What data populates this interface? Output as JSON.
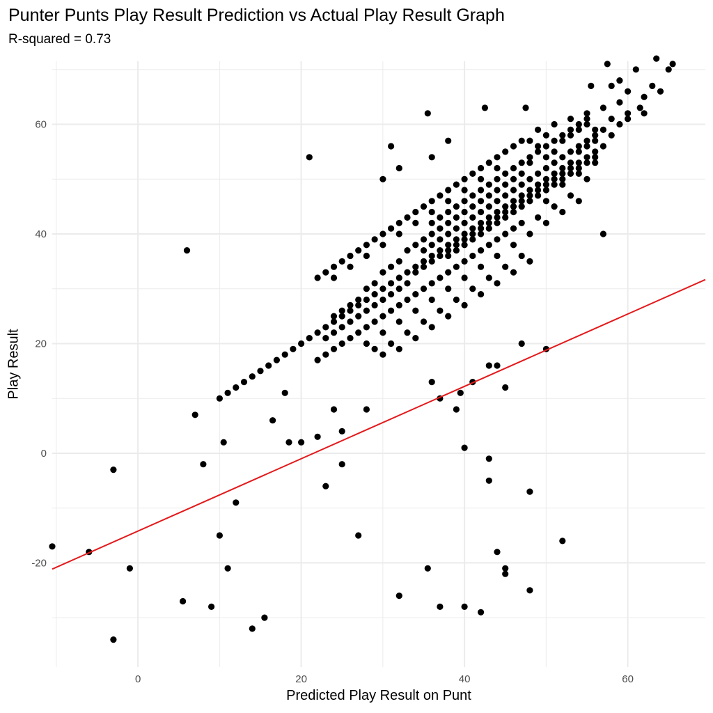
{
  "chart_data": {
    "type": "scatter",
    "title": "Punter Punts Play Result Prediction vs Actual Play Result Graph",
    "subtitle": "R-squared = 0.73",
    "xlabel": "Predicted Play Result on Punt",
    "ylabel": "Play Result",
    "xlim": [
      -10.5,
      69.5
    ],
    "ylim": [
      -39,
      71.5
    ],
    "x_ticks": [
      0,
      20,
      40,
      60
    ],
    "y_ticks": [
      -20,
      0,
      20,
      40,
      60
    ],
    "x_tick_labels": [
      "0",
      "20",
      "40",
      "60"
    ],
    "y_tick_labels": [
      "-20",
      "0",
      "20",
      "40",
      "60"
    ],
    "grid": true,
    "colors": {
      "points": "#000000",
      "line": "#e31a1c",
      "grid": "#ebebeb"
    },
    "reference_line": {
      "slope": 0.66,
      "intercept": -14.2
    },
    "points": [
      [
        -10.5,
        -17
      ],
      [
        -6,
        -18
      ],
      [
        -3,
        -3
      ],
      [
        -3,
        -34
      ],
      [
        -1,
        -21
      ],
      [
        6,
        37
      ],
      [
        5.5,
        -27
      ],
      [
        7,
        7
      ],
      [
        8,
        -2
      ],
      [
        9,
        -28
      ],
      [
        10,
        -15
      ],
      [
        10,
        10
      ],
      [
        10.5,
        2
      ],
      [
        11,
        -21
      ],
      [
        12,
        -9
      ],
      [
        14,
        -32
      ],
      [
        15.5,
        -30
      ],
      [
        16.5,
        6
      ],
      [
        18,
        11
      ],
      [
        18.5,
        2
      ],
      [
        20,
        2
      ],
      [
        21,
        54
      ],
      [
        22,
        3
      ],
      [
        23,
        -6
      ],
      [
        24,
        8
      ],
      [
        25,
        -2
      ],
      [
        25,
        4
      ],
      [
        27,
        -15
      ],
      [
        28,
        8
      ],
      [
        30,
        50
      ],
      [
        31,
        56
      ],
      [
        32,
        -26
      ],
      [
        32,
        52
      ],
      [
        35.5,
        62
      ],
      [
        35.5,
        -21
      ],
      [
        36,
        54
      ],
      [
        36,
        13
      ],
      [
        37,
        -28
      ],
      [
        37,
        10
      ],
      [
        38,
        57
      ],
      [
        39,
        8
      ],
      [
        39.5,
        11
      ],
      [
        40,
        1
      ],
      [
        40,
        -28
      ],
      [
        41,
        13
      ],
      [
        42,
        -29
      ],
      [
        42.5,
        63
      ],
      [
        43,
        -1
      ],
      [
        43,
        -5
      ],
      [
        43,
        16
      ],
      [
        44,
        -18
      ],
      [
        44,
        16
      ],
      [
        45,
        -22
      ],
      [
        45,
        -21
      ],
      [
        45,
        12
      ],
      [
        47,
        20
      ],
      [
        47.5,
        63
      ],
      [
        48,
        -7
      ],
      [
        48,
        -25
      ],
      [
        50,
        19
      ],
      [
        52,
        -16
      ],
      [
        55.5,
        67
      ],
      [
        57,
        40
      ],
      [
        57.5,
        71
      ],
      [
        58,
        67
      ],
      [
        59,
        68
      ],
      [
        61,
        70
      ],
      [
        63.5,
        72
      ],
      [
        64,
        66
      ],
      [
        65,
        70
      ],
      [
        65.5,
        71
      ],
      [
        62,
        65
      ],
      [
        63,
        67
      ],
      [
        60,
        66
      ],
      [
        61.5,
        63
      ],
      [
        62,
        62
      ],
      [
        60,
        61
      ],
      [
        59,
        60
      ],
      [
        58,
        58
      ],
      [
        57,
        59
      ],
      [
        56,
        57
      ],
      [
        55,
        56
      ],
      [
        54,
        55
      ],
      [
        53,
        53
      ],
      [
        52,
        52
      ],
      [
        51,
        51
      ],
      [
        50,
        50
      ],
      [
        49,
        49
      ],
      [
        48,
        48
      ],
      [
        47,
        47
      ],
      [
        46,
        46
      ],
      [
        45,
        45
      ],
      [
        44,
        44
      ],
      [
        43,
        43
      ],
      [
        42,
        42
      ],
      [
        41,
        41
      ],
      [
        40,
        40
      ],
      [
        39,
        39
      ],
      [
        38,
        38
      ],
      [
        37,
        37
      ],
      [
        36,
        36
      ],
      [
        35,
        35
      ],
      [
        34,
        34
      ],
      [
        33,
        33
      ],
      [
        32,
        32
      ],
      [
        31,
        31
      ],
      [
        30,
        30
      ],
      [
        29,
        29
      ],
      [
        28,
        28
      ],
      [
        27,
        27
      ],
      [
        26,
        26
      ],
      [
        25,
        25
      ],
      [
        24,
        24
      ],
      [
        23,
        23
      ],
      [
        22,
        22
      ],
      [
        21,
        21
      ],
      [
        20,
        20
      ],
      [
        19,
        19
      ],
      [
        18,
        18
      ],
      [
        17,
        17
      ],
      [
        16,
        16
      ],
      [
        15,
        15
      ],
      [
        14,
        14
      ],
      [
        13,
        13
      ],
      [
        12,
        12
      ],
      [
        11,
        11
      ],
      [
        49,
        56
      ],
      [
        51,
        55
      ],
      [
        53,
        58
      ],
      [
        55,
        60
      ],
      [
        56,
        58
      ],
      [
        54,
        59
      ],
      [
        52,
        57
      ],
      [
        50,
        54
      ],
      [
        48,
        53
      ],
      [
        47,
        51
      ],
      [
        46,
        50
      ],
      [
        45,
        49
      ],
      [
        44,
        48
      ],
      [
        43,
        47
      ],
      [
        42,
        46
      ],
      [
        41,
        45
      ],
      [
        40,
        44
      ],
      [
        39,
        43
      ],
      [
        38,
        42
      ],
      [
        37,
        41
      ],
      [
        36,
        40
      ],
      [
        35,
        39
      ],
      [
        34,
        38
      ],
      [
        33,
        37
      ],
      [
        32,
        35
      ],
      [
        31,
        34
      ],
      [
        30,
        33
      ],
      [
        29,
        31
      ],
      [
        28,
        30
      ],
      [
        27,
        28
      ],
      [
        26,
        27
      ],
      [
        25,
        26
      ],
      [
        24,
        25
      ],
      [
        50,
        46
      ],
      [
        52,
        49
      ],
      [
        54,
        51
      ],
      [
        56,
        53
      ],
      [
        55,
        50
      ],
      [
        53,
        47
      ],
      [
        51,
        45
      ],
      [
        49,
        43
      ],
      [
        47,
        42
      ],
      [
        46,
        41
      ],
      [
        45,
        40
      ],
      [
        44,
        39
      ],
      [
        43,
        38
      ],
      [
        42,
        37
      ],
      [
        41,
        36
      ],
      [
        40,
        35
      ],
      [
        39,
        34
      ],
      [
        38,
        33
      ],
      [
        37,
        32
      ],
      [
        36,
        31
      ],
      [
        35,
        30
      ],
      [
        34,
        29
      ],
      [
        33,
        28
      ],
      [
        32,
        27
      ],
      [
        31,
        26
      ],
      [
        30,
        25
      ],
      [
        29,
        24
      ],
      [
        28,
        23
      ],
      [
        27,
        22
      ],
      [
        26,
        21
      ],
      [
        25,
        20
      ],
      [
        24,
        19
      ],
      [
        23,
        18
      ],
      [
        22,
        17
      ],
      [
        45,
        55
      ],
      [
        47,
        57
      ],
      [
        49,
        59
      ],
      [
        51,
        60
      ],
      [
        53,
        61
      ],
      [
        55,
        62
      ],
      [
        57,
        63
      ],
      [
        58,
        61
      ],
      [
        60,
        62
      ],
      [
        59,
        64
      ],
      [
        44,
        54
      ],
      [
        42,
        52
      ],
      [
        40,
        50
      ],
      [
        38,
        48
      ],
      [
        36,
        46
      ],
      [
        34,
        44
      ],
      [
        32,
        42
      ],
      [
        30,
        40
      ],
      [
        28,
        38
      ],
      [
        26,
        36
      ],
      [
        24,
        34
      ],
      [
        22,
        32
      ],
      [
        43,
        53
      ],
      [
        41,
        51
      ],
      [
        39,
        49
      ],
      [
        37,
        47
      ],
      [
        35,
        45
      ],
      [
        33,
        43
      ],
      [
        31,
        41
      ],
      [
        29,
        39
      ],
      [
        27,
        37
      ],
      [
        25,
        35
      ],
      [
        23,
        33
      ],
      [
        50,
        58
      ],
      [
        48,
        57
      ],
      [
        46,
        56
      ],
      [
        44,
        52
      ],
      [
        42,
        50
      ],
      [
        40,
        48
      ],
      [
        38,
        46
      ],
      [
        36,
        44
      ],
      [
        34,
        42
      ],
      [
        32,
        40
      ],
      [
        30,
        38
      ],
      [
        28,
        36
      ],
      [
        26,
        34
      ],
      [
        24,
        32
      ],
      [
        46,
        38
      ],
      [
        44,
        36
      ],
      [
        42,
        34
      ],
      [
        40,
        32
      ],
      [
        38,
        30
      ],
      [
        36,
        28
      ],
      [
        34,
        26
      ],
      [
        32,
        24
      ],
      [
        30,
        22
      ],
      [
        28,
        20
      ],
      [
        48,
        40
      ],
      [
        50,
        42
      ],
      [
        52,
        44
      ],
      [
        54,
        46
      ],
      [
        47,
        36
      ],
      [
        45,
        34
      ],
      [
        43,
        32
      ],
      [
        41,
        30
      ],
      [
        39,
        28
      ],
      [
        37,
        26
      ],
      [
        35,
        24
      ],
      [
        33,
        22
      ],
      [
        31,
        20
      ],
      [
        29,
        19
      ],
      [
        48,
        35
      ],
      [
        46,
        33
      ],
      [
        44,
        31
      ],
      [
        42,
        29
      ],
      [
        40,
        27
      ],
      [
        38,
        25
      ],
      [
        36,
        23
      ],
      [
        34,
        21
      ],
      [
        32,
        19
      ],
      [
        30,
        18
      ],
      [
        35,
        34
      ],
      [
        36,
        35
      ],
      [
        37,
        36
      ],
      [
        38,
        37
      ],
      [
        39,
        38
      ],
      [
        40,
        39
      ],
      [
        41,
        40
      ],
      [
        42,
        41
      ],
      [
        43,
        42
      ],
      [
        44,
        43
      ],
      [
        45,
        44
      ],
      [
        46,
        45
      ],
      [
        47,
        46
      ],
      [
        48,
        47
      ],
      [
        49,
        48
      ],
      [
        50,
        49
      ],
      [
        51,
        50
      ],
      [
        52,
        51
      ],
      [
        53,
        52
      ],
      [
        54,
        53
      ],
      [
        55,
        54
      ],
      [
        56,
        55
      ],
      [
        35,
        37
      ],
      [
        36,
        38
      ],
      [
        37,
        39
      ],
      [
        38,
        40
      ],
      [
        39,
        41
      ],
      [
        40,
        42
      ],
      [
        41,
        43
      ],
      [
        42,
        44
      ],
      [
        43,
        45
      ],
      [
        44,
        46
      ],
      [
        45,
        47
      ],
      [
        46,
        48
      ],
      [
        47,
        49
      ],
      [
        48,
        50
      ],
      [
        49,
        51
      ],
      [
        50,
        52
      ],
      [
        51,
        53
      ],
      [
        52,
        54
      ],
      [
        53,
        55
      ],
      [
        54,
        56
      ],
      [
        55,
        57
      ],
      [
        56,
        59
      ],
      [
        34,
        33
      ],
      [
        33,
        31
      ],
      [
        32,
        30
      ],
      [
        31,
        29
      ],
      [
        30,
        28
      ],
      [
        29,
        27
      ],
      [
        28,
        26
      ],
      [
        27,
        25
      ],
      [
        26,
        24
      ],
      [
        25,
        23
      ],
      [
        24,
        22
      ],
      [
        23,
        21
      ],
      [
        38,
        36
      ],
      [
        39,
        37
      ],
      [
        40,
        38
      ],
      [
        41,
        39
      ],
      [
        42,
        40
      ],
      [
        43,
        41
      ],
      [
        44,
        42
      ],
      [
        45,
        43
      ],
      [
        46,
        44
      ],
      [
        47,
        45
      ],
      [
        48,
        46
      ],
      [
        49,
        47
      ],
      [
        50,
        48
      ],
      [
        51,
        49
      ],
      [
        52,
        50
      ],
      [
        53,
        51
      ],
      [
        54,
        52
      ],
      [
        55,
        53
      ],
      [
        56,
        54
      ],
      [
        57,
        56
      ],
      [
        36,
        42
      ],
      [
        37,
        43
      ],
      [
        38,
        44
      ],
      [
        39,
        45
      ],
      [
        40,
        46
      ],
      [
        41,
        47
      ],
      [
        42,
        48
      ],
      [
        43,
        49
      ],
      [
        44,
        50
      ],
      [
        45,
        51
      ],
      [
        46,
        52
      ],
      [
        47,
        53
      ],
      [
        48,
        54
      ],
      [
        49,
        55
      ],
      [
        50,
        56
      ],
      [
        51,
        57
      ],
      [
        52,
        58
      ],
      [
        53,
        59
      ],
      [
        54,
        60
      ],
      [
        55,
        61
      ]
    ]
  }
}
